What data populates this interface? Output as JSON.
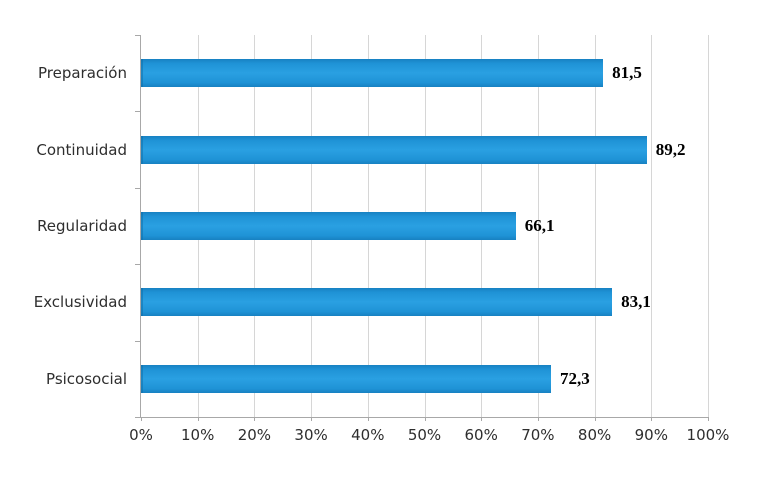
{
  "chart_data": {
    "type": "bar",
    "orientation": "horizontal",
    "title": "",
    "xlabel": "",
    "ylabel": "",
    "categories": [
      "Preparación",
      "Continuidad",
      "Regularidad",
      "Exclusividad",
      "Psicosocial"
    ],
    "values": [
      81.5,
      89.2,
      66.1,
      83.1,
      72.3
    ],
    "value_labels": [
      "81,5",
      "89,2",
      "66,1",
      "83,1",
      "72,3"
    ],
    "x_tick_labels": [
      "0%",
      "10%",
      "20%",
      "30%",
      "40%",
      "50%",
      "60%",
      "70%",
      "80%",
      "90%",
      "100%"
    ],
    "x_tick_values": [
      0,
      10,
      20,
      30,
      40,
      50,
      60,
      70,
      80,
      90,
      100
    ],
    "xlim": [
      0,
      100
    ],
    "grid": true,
    "legend": false,
    "colors": {
      "bar_fill": "#1e96da",
      "bar_edge_dark": "#1781c2",
      "gridline": "#d6d6d6",
      "axis_line": "#a8a8a8",
      "value_label_text": "#000000",
      "tick_label_text": "#2e2e2e",
      "background": "#ffffff"
    }
  }
}
